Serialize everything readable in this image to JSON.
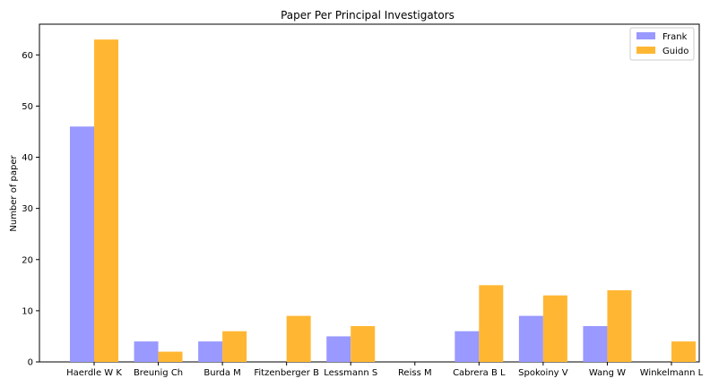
{
  "chart_data": {
    "type": "bar",
    "title": "Paper Per Principal Investigators",
    "xlabel": "",
    "ylabel": "Number of paper",
    "ylim": [
      0,
      66
    ],
    "yticks": [
      0,
      10,
      20,
      30,
      40,
      50,
      60
    ],
    "categories": [
      "Haerdle W K",
      "Breunig Ch",
      "Burda M",
      "Fitzenberger B",
      "Lessmann S",
      "Reiss M",
      "Cabrera B L",
      "Spokoiny V",
      "Wang W",
      "Winkelmann L"
    ],
    "series": [
      {
        "name": "Frank",
        "color": "#9999ff",
        "values": [
          46,
          4,
          4,
          0,
          5,
          0,
          6,
          9,
          7,
          0
        ]
      },
      {
        "name": "Guido",
        "color": "#ffb733",
        "values": [
          63,
          2,
          6,
          9,
          7,
          0,
          15,
          13,
          14,
          4
        ]
      }
    ],
    "legend_position": "top-right",
    "grid": false
  }
}
